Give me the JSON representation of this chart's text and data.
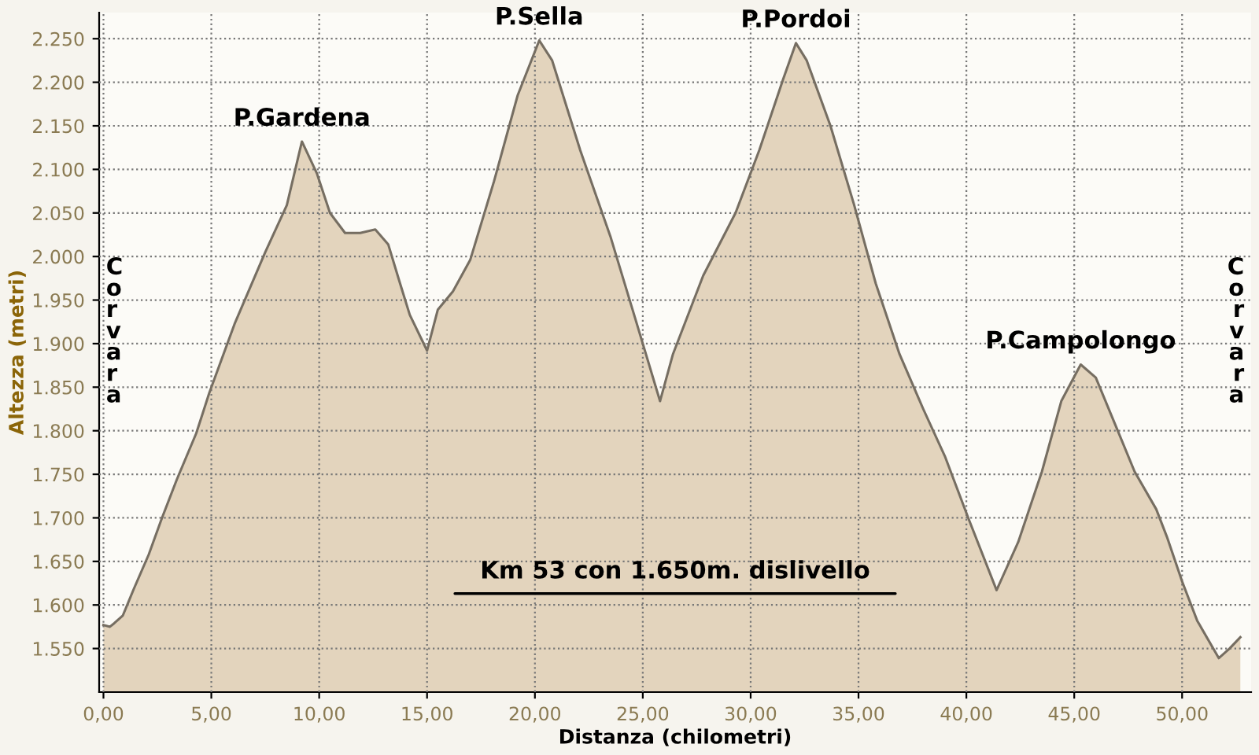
{
  "chart_data": {
    "type": "area",
    "xlabel": "Distanza (chilometri)",
    "ylabel": "Altezza (metri)",
    "x": [
      0,
      0.3,
      0.5,
      0.9,
      1.4,
      2.1,
      2.7,
      3.4,
      4.3,
      4.9,
      6.1,
      7.5,
      8.5,
      9.2,
      9.9,
      10.5,
      11.2,
      11.9,
      12.6,
      13.2,
      13.7,
      14.2,
      15.0,
      15.5,
      16.2,
      17.0,
      18.1,
      19.2,
      20.2,
      20.8,
      22.1,
      23.5,
      24.6,
      25.8,
      26.4,
      27.8,
      29.3,
      30.4,
      31.5,
      32.1,
      32.6,
      33.7,
      34.8,
      35.8,
      36.9,
      38.0,
      39.0,
      40.1,
      41.4,
      42.4,
      43.5,
      44.4,
      45.3,
      46.0,
      46.9,
      47.8,
      48.8,
      49.3,
      50.0,
      50.7,
      51.7,
      52.2,
      52.7
    ],
    "series": [
      {
        "color": "#e3d4bd",
        "values": [
          1577,
          1575,
          1579,
          1588,
          1618,
          1658,
          1699,
          1744,
          1797,
          1843,
          1924,
          2005,
          2059,
          2132,
          2095,
          2050,
          2027,
          2027,
          2031,
          2014,
          1973,
          1933,
          1892,
          1939,
          1960,
          1996,
          2086,
          2185,
          2248,
          2225,
          2122,
          2023,
          1933,
          1834,
          1888,
          1978,
          2050,
          2122,
          2203,
          2245,
          2225,
          2150,
          2059,
          1969,
          1888,
          1825,
          1771,
          1699,
          1617,
          1672,
          1753,
          1834,
          1876,
          1861,
          1807,
          1753,
          1710,
          1678,
          1627,
          1582,
          1539,
          1550,
          1563
        ]
      }
    ],
    "xlim": [
      -0.2,
      53.2
    ],
    "ylim": [
      1500,
      2280
    ],
    "xticks": [
      {
        "value": 0,
        "label": "0,00"
      },
      {
        "value": 5,
        "label": "5,00"
      },
      {
        "value": 10,
        "label": "10,00"
      },
      {
        "value": 15,
        "label": "15,00"
      },
      {
        "value": 20,
        "label": "20,00"
      },
      {
        "value": 25,
        "label": "25,00"
      },
      {
        "value": 30,
        "label": "30,00"
      },
      {
        "value": 35,
        "label": "35,00"
      },
      {
        "value": 40,
        "label": "40,00"
      },
      {
        "value": 45,
        "label": "45,00"
      },
      {
        "value": 50,
        "label": "50,00"
      }
    ],
    "yticks": [
      {
        "value": 1550,
        "label": "1.550"
      },
      {
        "value": 1600,
        "label": "1.600"
      },
      {
        "value": 1650,
        "label": "1.650"
      },
      {
        "value": 1700,
        "label": "1.700"
      },
      {
        "value": 1750,
        "label": "1.750"
      },
      {
        "value": 1800,
        "label": "1.800"
      },
      {
        "value": 1850,
        "label": "1.850"
      },
      {
        "value": 1900,
        "label": "1.900"
      },
      {
        "value": 1950,
        "label": "1.950"
      },
      {
        "value": 2000,
        "label": "2.000"
      },
      {
        "value": 2050,
        "label": "2.050"
      },
      {
        "value": 2100,
        "label": "2.100"
      },
      {
        "value": 2150,
        "label": "2.150"
      },
      {
        "value": 2200,
        "label": "2.200"
      },
      {
        "value": 2250,
        "label": "2.250"
      }
    ],
    "grid": true,
    "line_style": "solid",
    "marker": "none",
    "annotations": [
      {
        "text": "P.Gardena",
        "x": 9.2,
        "y": 2132
      },
      {
        "text": "P.Sella",
        "x": 20.2,
        "y": 2248
      },
      {
        "text": "P.Pordoi",
        "x": 32.1,
        "y": 2245
      },
      {
        "text": "P.Campolongo",
        "x": 45.3,
        "y": 1876
      },
      "Corvara",
      "Corvara",
      "Km 53 con 1.650m. dislivello"
    ]
  }
}
